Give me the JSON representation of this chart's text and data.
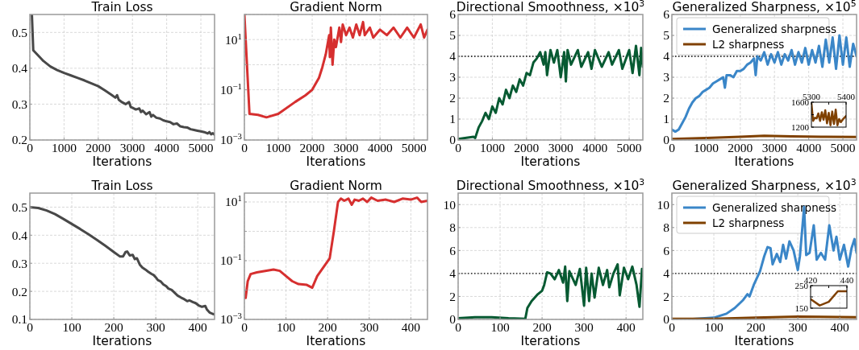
{
  "chart_data": [
    {
      "type": "line",
      "title": "Train Loss",
      "xlabel": "Iterations",
      "xlim": [
        0,
        5400
      ],
      "xticks": [
        0,
        1000,
        2000,
        3000,
        4000,
        5000
      ],
      "ylim": [
        0.2,
        0.55
      ],
      "yticks": [
        0.2,
        0.3,
        0.4,
        0.5
      ],
      "grid": true,
      "series": [
        {
          "color": "#484848",
          "x": [
            60,
            100,
            200,
            400,
            600,
            800,
            1000,
            1200,
            1400,
            1600,
            1800,
            2000,
            2200,
            2400,
            2500,
            2550,
            2600,
            2700,
            2800,
            2900,
            2950,
            3000,
            3100,
            3200,
            3250,
            3300,
            3400,
            3500,
            3550,
            3600,
            3700,
            3800,
            3900,
            4000,
            4100,
            4200,
            4300,
            4400,
            4500,
            4600,
            4700,
            4800,
            4900,
            5000,
            5100,
            5200,
            5250,
            5300,
            5350,
            5400
          ],
          "values": [
            0.55,
            0.45,
            0.44,
            0.42,
            0.405,
            0.395,
            0.387,
            0.38,
            0.373,
            0.366,
            0.358,
            0.35,
            0.338,
            0.325,
            0.318,
            0.325,
            0.312,
            0.305,
            0.3,
            0.306,
            0.292,
            0.29,
            0.285,
            0.288,
            0.278,
            0.282,
            0.272,
            0.278,
            0.265,
            0.27,
            0.262,
            0.26,
            0.255,
            0.252,
            0.25,
            0.244,
            0.246,
            0.238,
            0.236,
            0.235,
            0.23,
            0.228,
            0.226,
            0.224,
            0.222,
            0.218,
            0.222,
            0.216,
            0.219,
            0.215
          ]
        }
      ]
    },
    {
      "type": "line",
      "title": "Gradient Norm",
      "xlabel": "Iterations",
      "log": "y",
      "xlim": [
        0,
        5400
      ],
      "xticks": [
        0,
        1000,
        2000,
        3000,
        4000,
        5000
      ],
      "ylim": [
        0.001,
        100
      ],
      "yticks": [
        {
          "value": 0.001,
          "label": "10$^{−3}$"
        },
        {
          "value": 0.01,
          "label": null
        },
        {
          "value": 0.1,
          "label": "10$^{−1}$"
        },
        {
          "value": 1,
          "label": null
        },
        {
          "value": 10,
          "label": "10$^{1}$"
        },
        {
          "value": 100,
          "label": null
        }
      ],
      "grid": true,
      "series": [
        {
          "color": "#d62f2f",
          "x": [
            0,
            150,
            400,
            650,
            1000,
            1500,
            1800,
            2000,
            2200,
            2300,
            2400,
            2500,
            2520,
            2550,
            2600,
            2650,
            2700,
            2800,
            2850,
            2900,
            3000,
            3100,
            3200,
            3300,
            3400,
            3500,
            3550,
            3700,
            3800,
            4000,
            4200,
            4400,
            4600,
            4800,
            5000,
            5200,
            5300,
            5400
          ],
          "values": [
            100,
            0.011,
            0.01,
            0.008,
            0.011,
            0.033,
            0.06,
            0.1,
            0.3,
            0.8,
            2.6,
            15,
            2,
            30,
            1,
            10,
            5,
            30,
            8,
            40,
            15,
            30,
            12,
            40,
            15,
            50,
            15,
            30,
            12,
            25,
            15,
            30,
            12,
            30,
            12,
            40,
            12,
            25
          ]
        }
      ]
    },
    {
      "type": "line",
      "title": "Directional Smoothness, ×10$^{3}$",
      "xlabel": "Iterations",
      "xlim": [
        0,
        5400
      ],
      "xticks": [
        0,
        1000,
        2000,
        3000,
        4000,
        5000
      ],
      "ylim": [
        0,
        6
      ],
      "yticks": [
        0,
        1,
        2,
        3,
        4,
        5,
        6
      ],
      "grid": true,
      "ref_lines": [
        {
          "axis": "y",
          "value": 4,
          "color": "#000000",
          "line_style": "dotted"
        }
      ],
      "series": [
        {
          "color": "#075a32",
          "x": [
            0,
            200,
            450,
            500,
            600,
            700,
            800,
            900,
            1000,
            1100,
            1200,
            1300,
            1400,
            1500,
            1600,
            1700,
            1800,
            1900,
            2000,
            2100,
            2200,
            2300,
            2400,
            2500,
            2550,
            2600,
            2700,
            2800,
            2900,
            3000,
            3100,
            3150,
            3200,
            3300,
            3500,
            3600,
            3800,
            3900,
            4000,
            4200,
            4400,
            4500,
            4700,
            4800,
            5000,
            5100,
            5200,
            5300,
            5350,
            5400
          ],
          "values": [
            0.05,
            0.1,
            0.15,
            0.1,
            0.6,
            0.9,
            1.3,
            1.0,
            1.6,
            1.3,
            2.0,
            1.7,
            2.4,
            2.0,
            2.6,
            2.3,
            2.9,
            2.6,
            3.2,
            3.1,
            3.7,
            3.9,
            4.2,
            3.6,
            4.2,
            3.1,
            4.3,
            3.7,
            4.3,
            3.0,
            4.2,
            2.8,
            4.3,
            3.6,
            4.3,
            3.5,
            4.2,
            3.4,
            4.3,
            3.5,
            4.2,
            3.6,
            4.3,
            3.4,
            4.3,
            3.2,
            4.5,
            3.1,
            4.4,
            3.5
          ]
        }
      ]
    },
    {
      "type": "line",
      "title": "Generalized Sharpness, ×10$^{5}$",
      "xlabel": "Iterations",
      "xlim": [
        0,
        5400
      ],
      "xticks": [
        0,
        1000,
        2000,
        3000,
        4000,
        5000
      ],
      "ylim": [
        0,
        6
      ],
      "yticks": [
        0,
        1,
        2,
        3,
        4,
        5,
        6
      ],
      "grid": true,
      "legend": "top left",
      "ref_lines": [
        {
          "axis": "y",
          "value": 4,
          "color": "#000000",
          "line_style": "dotted"
        }
      ],
      "series": [
        {
          "name": "Generalized sharpness",
          "color": "#3a86c8",
          "x": [
            0,
            100,
            200,
            300,
            400,
            500,
            600,
            700,
            800,
            900,
            1000,
            1100,
            1200,
            1300,
            1400,
            1500,
            1550,
            1600,
            1700,
            1800,
            1900,
            2000,
            2100,
            2200,
            2300,
            2400,
            2450,
            2500,
            2600,
            2700,
            2800,
            2900,
            3000,
            3100,
            3200,
            3300,
            3400,
            3500,
            3600,
            3700,
            3800,
            3900,
            4000,
            4100,
            4200,
            4300,
            4400,
            4500,
            4600,
            4700,
            4800,
            4900,
            5000,
            5100,
            5200,
            5300,
            5400
          ],
          "values": [
            0.5,
            0.4,
            0.5,
            0.8,
            1.1,
            1.5,
            1.8,
            2.0,
            2.1,
            2.3,
            2.4,
            2.5,
            2.7,
            2.8,
            2.9,
            3.0,
            2.5,
            3.1,
            3.1,
            3.0,
            3.3,
            3.3,
            3.4,
            3.6,
            3.7,
            3.9,
            3.1,
            4.0,
            3.8,
            4.2,
            3.6,
            4.1,
            3.7,
            4.2,
            3.6,
            4.1,
            3.8,
            4.3,
            3.6,
            4.2,
            3.7,
            4.4,
            3.6,
            4.3,
            3.7,
            4.5,
            3.5,
            4.8,
            3.7,
            4.9,
            3.4,
            5.0,
            3.6,
            4.9,
            3.5,
            4.6,
            4.0
          ]
        },
        {
          "name": "L2 sharpness",
          "color": "#7f4000",
          "x": [
            0,
            1000,
            2000,
            2700,
            3500,
            4500,
            5400
          ],
          "values": [
            0.05,
            0.1,
            0.15,
            0.2,
            0.17,
            0.15,
            0.14
          ]
        }
      ]
    },
    {
      "type": "line",
      "xlim": [
        5300,
        5400
      ],
      "xticks": [
        5300,
        {
          "value": 5350,
          "label": null
        },
        5400
      ],
      "ylim": [
        1200,
        1600
      ],
      "yticks": [
        1200,
        {
          "value": 1400,
          "label": null
        },
        1600
      ],
      "series": [
        {
          "color": "#7f4000",
          "x": [
            5300,
            5305,
            5310,
            5315,
            5320,
            5325,
            5330,
            5335,
            5340,
            5345,
            5350,
            5355,
            5360,
            5365,
            5370,
            5375,
            5380,
            5385,
            5390,
            5400
          ],
          "values": [
            1580,
            1300,
            1350,
            1340,
            1420,
            1300,
            1440,
            1320,
            1470,
            1260,
            1430,
            1230,
            1450,
            1250,
            1480,
            1230,
            1330,
            1280,
            1320,
            1380
          ]
        }
      ]
    },
    {
      "type": "line",
      "title": "Train Loss",
      "xlabel": "Iterations",
      "xlim": [
        0,
        440
      ],
      "xticks": [
        0,
        100,
        200,
        300,
        400
      ],
      "ylim": [
        0.1,
        0.55
      ],
      "yticks": [
        0.1,
        0.2,
        0.3,
        0.4,
        0.5
      ],
      "grid": true,
      "series": [
        {
          "color": "#484848",
          "x": [
            0,
            20,
            40,
            60,
            80,
            100,
            120,
            140,
            160,
            180,
            200,
            215,
            222,
            228,
            232,
            238,
            245,
            250,
            255,
            262,
            268,
            275,
            282,
            290,
            295,
            300,
            305,
            312,
            318,
            325,
            330,
            338,
            345,
            352,
            360,
            368,
            375,
            380,
            388,
            395,
            402,
            410,
            418,
            422,
            428,
            435,
            440
          ],
          "values": [
            0.5,
            0.497,
            0.488,
            0.475,
            0.458,
            0.44,
            0.422,
            0.403,
            0.383,
            0.362,
            0.34,
            0.324,
            0.324,
            0.34,
            0.342,
            0.328,
            0.33,
            0.315,
            0.318,
            0.295,
            0.285,
            0.278,
            0.27,
            0.262,
            0.258,
            0.25,
            0.24,
            0.235,
            0.225,
            0.218,
            0.21,
            0.205,
            0.195,
            0.185,
            0.178,
            0.172,
            0.165,
            0.168,
            0.162,
            0.158,
            0.15,
            0.145,
            0.148,
            0.135,
            0.125,
            0.12,
            0.118
          ]
        }
      ]
    },
    {
      "type": "line",
      "title": "Gradient Norm",
      "xlabel": "Iterations",
      "log": "y",
      "xlim": [
        0,
        440
      ],
      "xticks": [
        0,
        100,
        200,
        300,
        400
      ],
      "ylim": [
        0.001,
        20
      ],
      "yticks": [
        {
          "value": 0.001,
          "label": "10$^{−3}$"
        },
        {
          "value": 0.01,
          "label": null
        },
        {
          "value": 0.1,
          "label": "10$^{−1}$"
        },
        {
          "value": 1,
          "label": null
        },
        {
          "value": 10,
          "label": "10$^{1}$"
        }
      ],
      "grid": true,
      "series": [
        {
          "color": "#d62f2f",
          "x": [
            3,
            8,
            15,
            30,
            50,
            70,
            85,
            100,
            115,
            130,
            150,
            163,
            175,
            190,
            205,
            215,
            225,
            232,
            240,
            250,
            258,
            265,
            275,
            285,
            295,
            305,
            320,
            340,
            360,
            380,
            400,
            415,
            425,
            440
          ],
          "values": [
            0.0054,
            0.02,
            0.035,
            0.04,
            0.045,
            0.05,
            0.045,
            0.03,
            0.02,
            0.016,
            0.015,
            0.012,
            0.03,
            0.06,
            0.12,
            1,
            10,
            13,
            11,
            13,
            8,
            12,
            11,
            13,
            10,
            14,
            11,
            12,
            10,
            13,
            12,
            14,
            10,
            11
          ]
        }
      ]
    },
    {
      "type": "line",
      "title": "Directional Smoothness, ×10$^{3}$",
      "xlabel": "Iterations",
      "xlim": [
        0,
        440
      ],
      "xticks": [
        0,
        100,
        200,
        300,
        400
      ],
      "ylim": [
        0,
        11
      ],
      "yticks": [
        0,
        2,
        4,
        6,
        8,
        10
      ],
      "grid": true,
      "ref_lines": [
        {
          "axis": "y",
          "value": 4,
          "color": "#000000",
          "line_style": "dotted"
        }
      ],
      "series": [
        {
          "color": "#075a32",
          "x": [
            0,
            40,
            80,
            120,
            160,
            165,
            175,
            190,
            200,
            205,
            212,
            220,
            230,
            240,
            250,
            255,
            260,
            265,
            280,
            290,
            300,
            305,
            312,
            318,
            325,
            335,
            345,
            355,
            360,
            370,
            380,
            385,
            395,
            405,
            415,
            425,
            432,
            438,
            440
          ],
          "values": [
            0.1,
            0.2,
            0.2,
            0.1,
            0.05,
            1.0,
            1.6,
            2.2,
            2.5,
            3,
            4.1,
            4.0,
            3.5,
            4.3,
            3.2,
            4.6,
            1.6,
            4.2,
            3.0,
            4.4,
            1.2,
            4.5,
            1.6,
            4.0,
            1.9,
            4.5,
            3.0,
            4.3,
            2.8,
            4.0,
            4.8,
            2.1,
            4.5,
            3.5,
            4.6,
            3.0,
            1.1,
            4.4,
            3.8
          ]
        }
      ]
    },
    {
      "type": "line",
      "title": "Generalized Sharpness, ×10$^{3}$",
      "xlabel": "Iterations",
      "xlim": [
        0,
        440
      ],
      "xticks": [
        0,
        100,
        200,
        300,
        400
      ],
      "ylim": [
        0,
        11
      ],
      "yticks": [
        0,
        2,
        4,
        6,
        8,
        10
      ],
      "grid": true,
      "legend": "top left",
      "ref_lines": [
        {
          "axis": "y",
          "value": 4,
          "color": "#000000",
          "line_style": "dotted"
        }
      ],
      "series": [
        {
          "name": "Generalized sharpness",
          "color": "#3a86c8",
          "x": [
            0,
            50,
            100,
            130,
            150,
            170,
            180,
            185,
            195,
            210,
            220,
            228,
            235,
            240,
            250,
            258,
            265,
            272,
            280,
            290,
            300,
            305,
            315,
            320,
            328,
            338,
            345,
            355,
            365,
            375,
            385,
            392,
            400,
            410,
            420,
            428,
            435,
            440
          ],
          "values": [
            0.02,
            0.03,
            0.15,
            0.5,
            1.0,
            1.7,
            2.2,
            2.0,
            3,
            4.2,
            5.5,
            6.3,
            6.2,
            4.8,
            5.7,
            5.0,
            6.5,
            5.3,
            6.8,
            6.0,
            4.3,
            5.5,
            9.8,
            5.6,
            5.8,
            8.2,
            5.2,
            5.8,
            5.2,
            8.2,
            6.0,
            7.2,
            5.2,
            6.5,
            4.6,
            6.2,
            7.0,
            5.8
          ]
        },
        {
          "name": "L2 sharpness",
          "color": "#7f4000",
          "x": [
            0,
            100,
            200,
            300,
            440
          ],
          "values": [
            0.05,
            0.05,
            0.15,
            0.25,
            0.2
          ]
        }
      ]
    },
    {
      "type": "line",
      "xlim": [
        420,
        440
      ],
      "xticks": [
        420,
        {
          "value": 430,
          "label": null
        },
        440
      ],
      "ylim": [
        150,
        250
      ],
      "yticks": [
        150,
        {
          "value": 200,
          "label": null
        },
        250
      ],
      "series": [
        {
          "color": "#7f4000",
          "x": [
            420,
            425,
            430,
            435,
            440
          ],
          "values": [
            190,
            162,
            178,
            225,
            225
          ]
        }
      ]
    }
  ]
}
